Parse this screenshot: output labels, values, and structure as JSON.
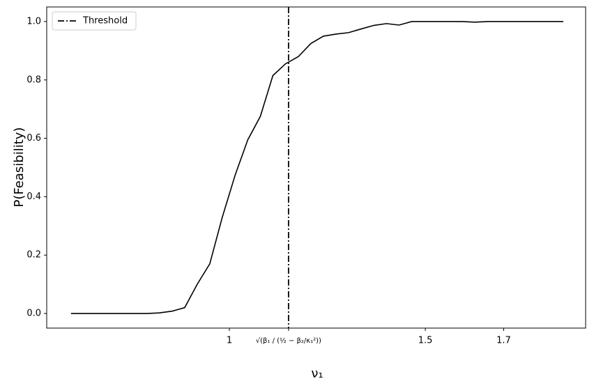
{
  "chart_data": {
    "type": "line",
    "y_label": "P(Feasibility)",
    "x_label": "ν₁",
    "x": [
      0.596,
      0.628,
      0.66,
      0.693,
      0.725,
      0.757,
      0.789,
      0.821,
      0.854,
      0.886,
      0.918,
      0.95,
      0.982,
      1.015,
      1.047,
      1.079,
      1.111,
      1.143,
      1.176,
      1.208,
      1.24,
      1.272,
      1.304,
      1.337,
      1.369,
      1.401,
      1.433,
      1.465,
      1.498,
      1.53,
      1.562,
      1.594,
      1.626,
      1.659,
      1.691,
      1.723,
      1.755,
      1.787,
      1.82,
      1.852
    ],
    "values": [
      0,
      0,
      0,
      0,
      0,
      0,
      0,
      0.002,
      0.008,
      0.02,
      0.1,
      0.17,
      0.33,
      0.475,
      0.595,
      0.675,
      0.815,
      0.855,
      0.88,
      0.925,
      0.95,
      0.957,
      0.962,
      0.975,
      0.987,
      0.993,
      0.988,
      1.0,
      1.0,
      1.0,
      1.0,
      1.0,
      0.998,
      1.0,
      1.0,
      1.0,
      1.0,
      1.0,
      1.0,
      1.0
    ],
    "color": "#000000",
    "threshold": {
      "name": "Threshold",
      "x": 1.151,
      "color": "#000000",
      "style": "dashdot"
    },
    "legend": "upper left",
    "xlim": [
      0.534,
      1.909
    ],
    "ylim": [
      -0.05,
      1.05
    ],
    "xticks": [
      1,
      {
        "value": 1.151,
        "label": "√(β₁ / (½ − β₂/κ₁²))"
      },
      1.5,
      1.7
    ],
    "yticks": [
      {
        "value": 0,
        "label": "0.0"
      },
      0.2,
      0.4,
      0.6,
      0.8,
      {
        "value": 1,
        "label": "1.0"
      }
    ]
  }
}
